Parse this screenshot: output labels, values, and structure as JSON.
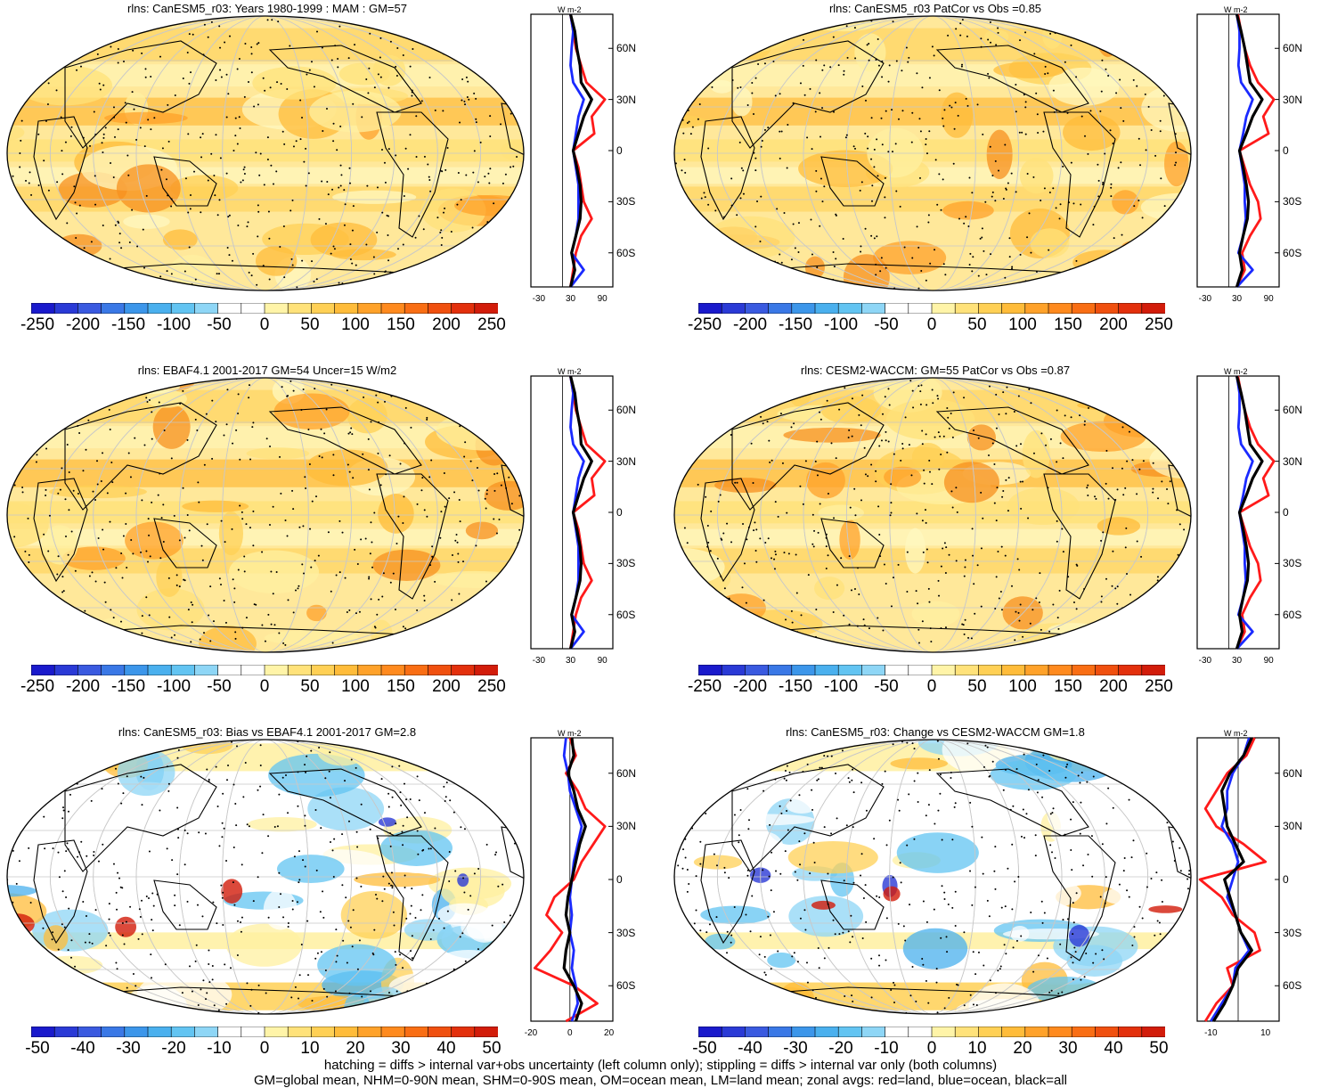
{
  "panels": [
    {
      "title": "rlns: CanESM5_r03: Years 1980-1999 : MAM : GM=57",
      "scale": "abs",
      "cmap": "warm"
    },
    {
      "title": "rlns: CanESM5_r03 PatCor vs Obs =0.85",
      "scale": "abs",
      "cmap": "warm"
    },
    {
      "title": "rlns: EBAF4.1 2001-2017 GM=54 Uncer=15 W/m2",
      "scale": "abs",
      "cmap": "warm"
    },
    {
      "title": "rlns: CESM2-WACCM: GM=55 PatCor vs Obs =0.87",
      "scale": "abs",
      "cmap": "warm"
    },
    {
      "title": "rlns: CanESM5_r03: Bias vs EBAF4.1 2001-2017 GM=2.8",
      "scale": "diff",
      "cmap": "diff"
    },
    {
      "title": "rlns: CanESM5_r03: Change vs CESM2-WACCM GM=1.8",
      "scale": "diff",
      "cmap": "diff2"
    }
  ],
  "colorbar_abs_labels": [
    "-250",
    "-200",
    "-150",
    "-100",
    "-50",
    "0",
    "50",
    "100",
    "150",
    "200",
    "250"
  ],
  "colorbar_diff_labels": [
    "-50",
    "-40",
    "-30",
    "-20",
    "-10",
    "0",
    "10",
    "20",
    "30",
    "40",
    "50"
  ],
  "colorbar_colors": [
    "#1a1acc",
    "#2a3ad6",
    "#3a5ae0",
    "#3a78e6",
    "#3c96ea",
    "#4ab0ee",
    "#62c4f2",
    "#8ed6f6",
    "#ffffff",
    "#ffffff",
    "#fff4a8",
    "#ffe27a",
    "#ffd055",
    "#ffbc3a",
    "#ffa22a",
    "#ff8a1e",
    "#f96e14",
    "#f0500f",
    "#e3300c",
    "#d21c0a"
  ],
  "zonal_lat_labels": [
    "60N",
    "30N",
    "0",
    "30S",
    "60S"
  ],
  "zonal_unit": "W m-2",
  "zonal_x_abs": [
    "-30",
    "30",
    "90"
  ],
  "zonal_x_diff_left": [
    "-20",
    "0",
    "20"
  ],
  "zonal_x_diff_right": [
    "-10",
    "10"
  ],
  "footer_line1": "hatching = diffs > internal var+obs uncertainty (left column only); stippling = diffs > internal var only (both columns)",
  "footer_line2": "GM=global mean, NHM=0-90N mean, SHM=0-90S mean, OM=ocean mean, LM=land mean; zonal avgs: red=land, blue=ocean, black=all",
  "zonal_series": {
    "abs1": {
      "lat": [
        80,
        70,
        60,
        50,
        40,
        30,
        20,
        10,
        0,
        -10,
        -20,
        -30,
        -40,
        -50,
        -60,
        -70,
        -80
      ],
      "land": [
        30,
        35,
        40,
        50,
        60,
        95,
        70,
        75,
        35,
        45,
        50,
        55,
        70,
        50,
        40,
        35,
        30
      ],
      "ocean": [
        30,
        35,
        32,
        30,
        35,
        55,
        45,
        40,
        35,
        40,
        45,
        45,
        45,
        40,
        32,
        55,
        30
      ],
      "all": [
        30,
        38,
        42,
        48,
        50,
        70,
        55,
        45,
        35,
        42,
        48,
        50,
        48,
        40,
        32,
        38,
        30
      ]
    },
    "abs2": {
      "lat": [
        80,
        70,
        60,
        50,
        40,
        30,
        20,
        10,
        0,
        -10,
        -20,
        -30,
        -40,
        -50,
        -60,
        -70,
        -80
      ],
      "land": [
        32,
        38,
        45,
        55,
        70,
        100,
        80,
        90,
        35,
        45,
        55,
        70,
        75,
        55,
        40,
        45,
        30
      ],
      "ocean": [
        30,
        35,
        35,
        33,
        38,
        60,
        48,
        42,
        35,
        40,
        45,
        45,
        47,
        42,
        33,
        60,
        30
      ],
      "all": [
        30,
        38,
        45,
        50,
        55,
        78,
        60,
        48,
        35,
        42,
        48,
        52,
        50,
        42,
        35,
        40,
        30
      ]
    },
    "diff1": {
      "lat": [
        80,
        70,
        60,
        50,
        40,
        30,
        20,
        10,
        0,
        -10,
        -20,
        -30,
        -40,
        -50,
        -60,
        -70,
        -80
      ],
      "land": [
        0,
        3,
        -2,
        4,
        8,
        18,
        12,
        6,
        2,
        -8,
        -12,
        -4,
        -10,
        -18,
        2,
        14,
        -2
      ],
      "ocean": [
        -2,
        -3,
        -1,
        0,
        3,
        6,
        4,
        2,
        1,
        0,
        1,
        0,
        2,
        1,
        3,
        4,
        1
      ],
      "all": [
        1,
        2,
        -1,
        2,
        4,
        8,
        5,
        3,
        1,
        -1,
        -2,
        0,
        -2,
        -3,
        2,
        6,
        3
      ]
    },
    "diff2": {
      "lat": [
        80,
        70,
        60,
        50,
        40,
        30,
        20,
        10,
        0,
        -10,
        -20,
        -30,
        -40,
        -50,
        -60,
        -70,
        -80
      ],
      "land": [
        6,
        3,
        -4,
        -8,
        -12,
        -8,
        2,
        10,
        -14,
        -6,
        -2,
        6,
        8,
        -4,
        -2,
        -8,
        -12
      ],
      "ocean": [
        4,
        2,
        -2,
        -4,
        -4,
        -6,
        -2,
        0,
        -2,
        -4,
        -1,
        1,
        4,
        -1,
        -2,
        -6,
        -10
      ],
      "all": [
        5,
        2,
        -3,
        -6,
        -5,
        -4,
        -1,
        2,
        -5,
        -3,
        -1,
        1,
        5,
        0,
        -2,
        -5,
        -9
      ]
    }
  }
}
